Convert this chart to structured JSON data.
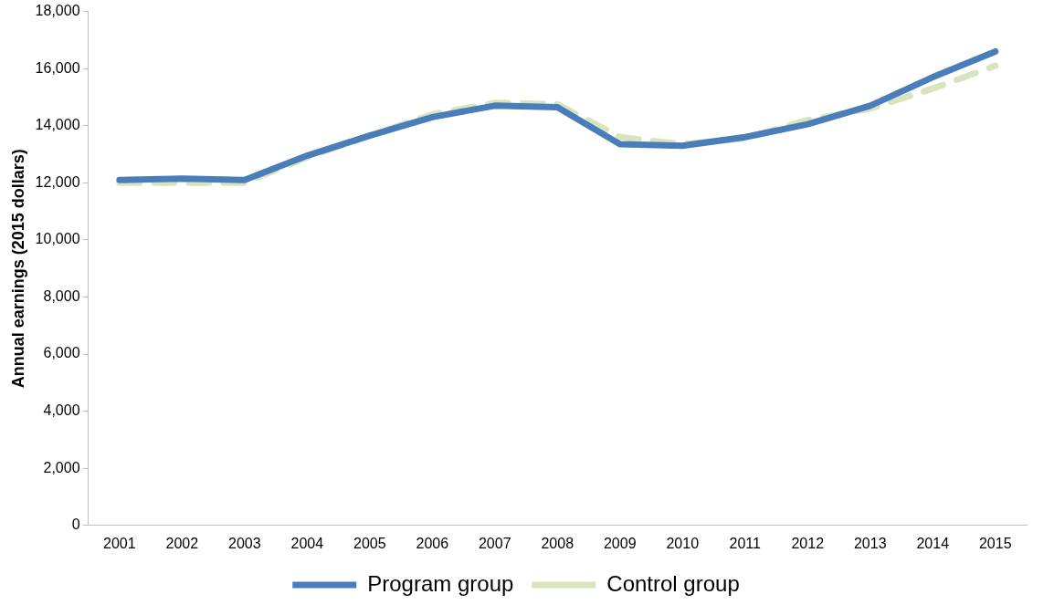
{
  "chart_data": {
    "type": "line",
    "ylabel": "Annual earnings (2015 dollars)",
    "categories": [
      "2001",
      "2002",
      "2003",
      "2004",
      "2005",
      "2006",
      "2007",
      "2008",
      "2009",
      "2010",
      "2011",
      "2012",
      "2013",
      "2014",
      "2015"
    ],
    "series": [
      {
        "name": "Program group",
        "color": "#4a7ebb",
        "line_style": "solid",
        "values": [
          12100,
          12150,
          12100,
          12950,
          13650,
          14300,
          14700,
          14650,
          13350,
          13300,
          13600,
          14050,
          14700,
          15700,
          16600
        ]
      },
      {
        "name": "Control group",
        "color": "#d7e4bd",
        "line_style": "dashed",
        "values": [
          12000,
          12000,
          12000,
          12900,
          13650,
          14400,
          14800,
          14750,
          13600,
          13350,
          13550,
          14200,
          14600,
          15300,
          16100
        ]
      }
    ],
    "ylim": [
      0,
      18000
    ],
    "yticks": [
      0,
      {
        "value": 2000,
        "label": "2,000"
      },
      {
        "value": 4000,
        "label": "4,000"
      },
      {
        "value": 6000,
        "label": "6,000"
      },
      {
        "value": 8000,
        "label": "8,000"
      },
      {
        "value": 10000,
        "label": "10,000"
      },
      {
        "value": 12000,
        "label": "12,000"
      },
      {
        "value": 14000,
        "label": "14,000"
      },
      {
        "value": 16000,
        "label": "16,000"
      },
      {
        "value": 18000,
        "label": "18,000"
      }
    ],
    "grid": false,
    "legend": "bottom",
    "marker": "none"
  }
}
